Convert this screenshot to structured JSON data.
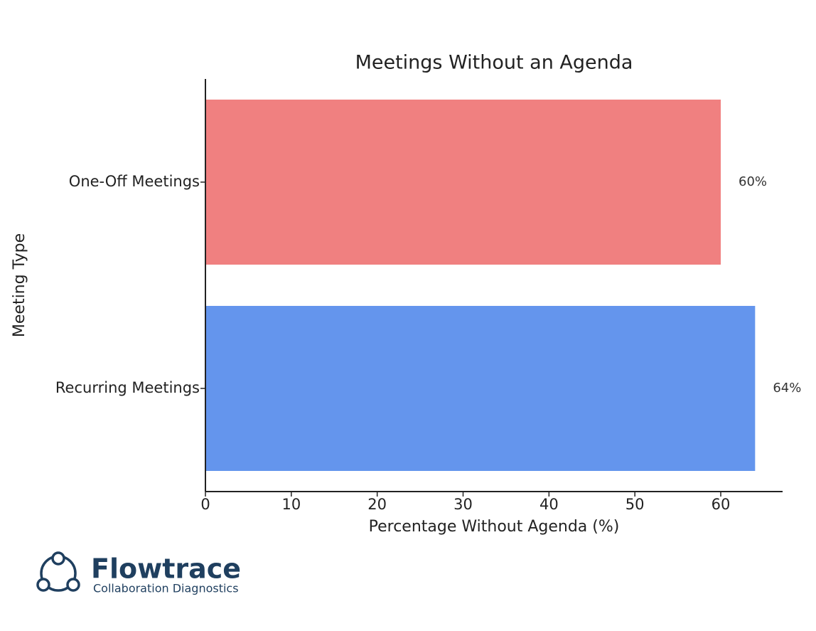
{
  "chart_data": {
    "type": "hbar",
    "title": "Meetings Without an Agenda",
    "x_label": "Percentage Without Agenda (%)",
    "y_label": "Meeting Type",
    "categories": [
      "One-Off Meetings",
      "Recurring Meetings"
    ],
    "values": [
      60,
      64
    ],
    "value_labels": [
      "60%",
      "64%"
    ],
    "colors": [
      "#f08080",
      "#6495ed"
    ],
    "xlim": [
      0,
      67.2
    ],
    "xticks": [
      0,
      10,
      20,
      30,
      40,
      50,
      60
    ]
  },
  "logo": {
    "name": "Flowtrace",
    "tagline": "Collaboration Diagnostics"
  }
}
